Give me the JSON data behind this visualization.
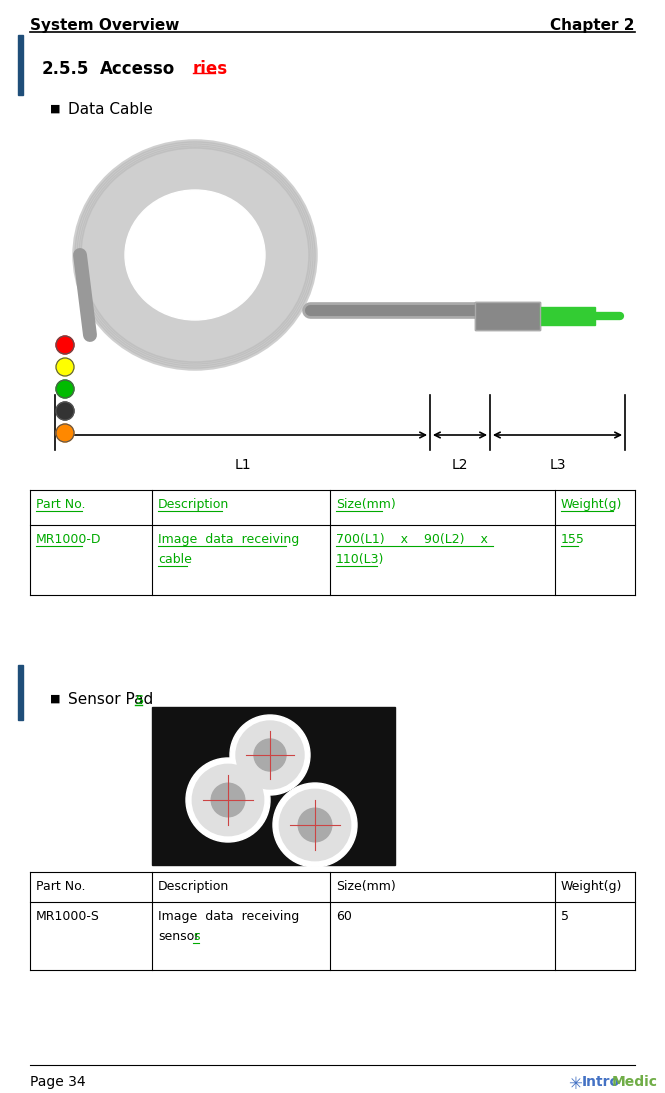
{
  "header_left": "System Overview",
  "header_right": "Chapter 2",
  "section_num": "2.5.5",
  "section_title_black": "Accesso",
  "section_title_red": "ries",
  "bullet1": "Data Cable",
  "bullet2_black": "Sensor Pad",
  "bullet2_green": "s",
  "table1_headers": [
    "Part No.",
    "Description",
    "Size(mm)",
    "Weight(g)"
  ],
  "table1_row": [
    "MR1000-D",
    "Image  data  receiving\ncable",
    "700(L1)    x    90(L2)    x\n110(L3)",
    "155"
  ],
  "table2_headers": [
    "Part No.",
    "Description",
    "Size(mm)",
    "Weight(g)"
  ],
  "table2_row": [
    "MR1000-S",
    "Image  data  receiving\nsensors",
    "60",
    "5"
  ],
  "footer_left": "Page 34",
  "green_color": "#00AA00",
  "red_color": "#FF0000",
  "black_color": "#000000",
  "label_L1": "L1",
  "label_L2": "L2",
  "label_L3": "L3",
  "page_bg": "#FFFFFF",
  "blue_bar_color": "#1F4E79"
}
